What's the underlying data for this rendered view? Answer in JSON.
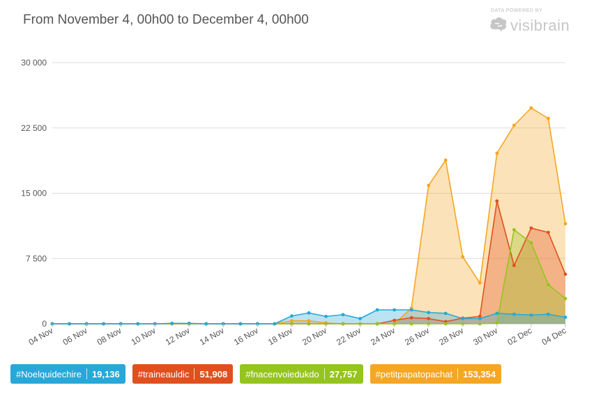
{
  "header": {
    "title": "From November 4, 00h00 to December 4, 00h00"
  },
  "brand": {
    "caption": "DATA POWERED BY",
    "name": "visibrain",
    "icon": "brain-icon"
  },
  "chart_data": {
    "type": "area",
    "title": "From November 4, 00h00 to December 4, 00h00",
    "xlabel": "",
    "ylabel": "",
    "ylim": [
      0,
      30000
    ],
    "yticks": [
      0,
      7500,
      15000,
      22500,
      30000
    ],
    "ytick_labels": [
      "0",
      "7 500",
      "15 000",
      "22 500",
      "30 000"
    ],
    "x": [
      "04 Nov",
      "05 Nov",
      "06 Nov",
      "07 Nov",
      "08 Nov",
      "09 Nov",
      "10 Nov",
      "11 Nov",
      "12 Nov",
      "13 Nov",
      "14 Nov",
      "15 Nov",
      "16 Nov",
      "17 Nov",
      "18 Nov",
      "19 Nov",
      "20 Nov",
      "21 Nov",
      "22 Nov",
      "23 Nov",
      "24 Nov",
      "25 Nov",
      "26 Nov",
      "27 Nov",
      "28 Nov",
      "29 Nov",
      "30 Nov",
      "01 Dec",
      "02 Dec",
      "03 Dec",
      "04 Dec"
    ],
    "xtick_labels": [
      "04 Nov",
      "06 Nov",
      "08 Nov",
      "10 Nov",
      "12 Nov",
      "14 Nov",
      "16 Nov",
      "18 Nov",
      "20 Nov",
      "22 Nov",
      "24 Nov",
      "26 Nov",
      "28 Nov",
      "30 Nov",
      "02 Dec",
      "04 Dec"
    ],
    "grid": true,
    "legend_position": "bottom-left",
    "series": [
      {
        "name": "#Noelquidechire",
        "total": "19,136",
        "color": "#27a8d8",
        "values": [
          0,
          0,
          0,
          0,
          0,
          0,
          0,
          50,
          50,
          0,
          0,
          0,
          0,
          0,
          900,
          1250,
          850,
          1050,
          600,
          1600,
          1600,
          1600,
          1300,
          1200,
          600,
          600,
          1200,
          1100,
          1000,
          1100,
          750
        ]
      },
      {
        "name": "#traineauldic",
        "total": "51,908",
        "color": "#e0501e",
        "values": [
          0,
          0,
          0,
          0,
          0,
          0,
          0,
          0,
          0,
          0,
          0,
          0,
          0,
          0,
          0,
          0,
          0,
          0,
          0,
          0,
          400,
          700,
          600,
          250,
          650,
          850,
          14100,
          6700,
          11000,
          10500,
          5700
        ]
      },
      {
        "name": "#fnacenvoiedukdo",
        "total": "27,757",
        "color": "#95c41f",
        "values": [
          0,
          0,
          0,
          0,
          0,
          0,
          0,
          0,
          0,
          0,
          0,
          0,
          0,
          0,
          0,
          0,
          0,
          0,
          0,
          0,
          0,
          0,
          0,
          0,
          0,
          0,
          100,
          10800,
          9300,
          4500,
          2900
        ]
      },
      {
        "name": "#petitpapatopachat",
        "total": "153,354",
        "color": "#f5a623",
        "values": [
          0,
          0,
          0,
          0,
          0,
          0,
          0,
          50,
          50,
          0,
          0,
          0,
          0,
          0,
          350,
          350,
          100,
          0,
          0,
          0,
          0,
          1800,
          15900,
          18800,
          7700,
          4700,
          19600,
          22800,
          24800,
          23600,
          11500
        ]
      }
    ]
  }
}
